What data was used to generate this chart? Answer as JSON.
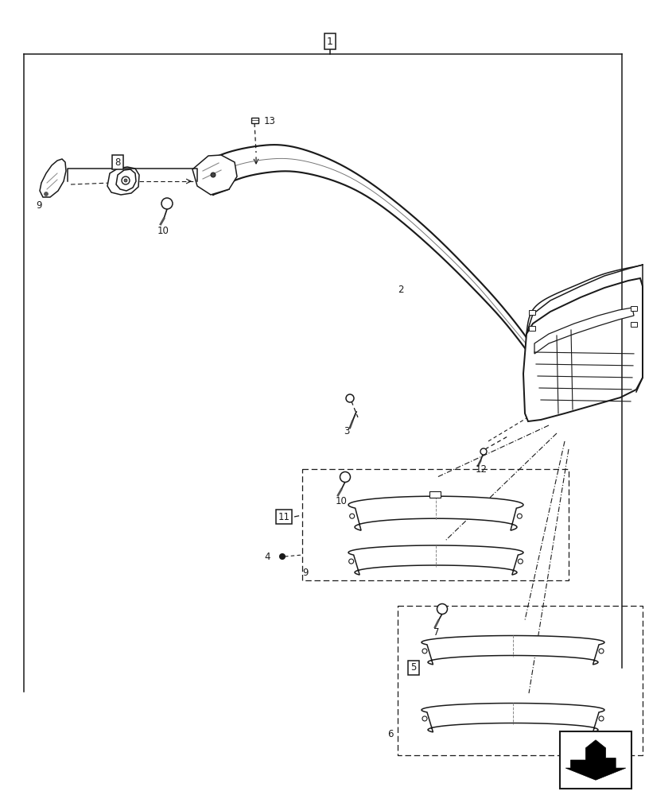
{
  "bg_color": "#ffffff",
  "line_color": "#1a1a1a",
  "fig_width": 8.12,
  "fig_height": 10.0,
  "dpi": 100
}
